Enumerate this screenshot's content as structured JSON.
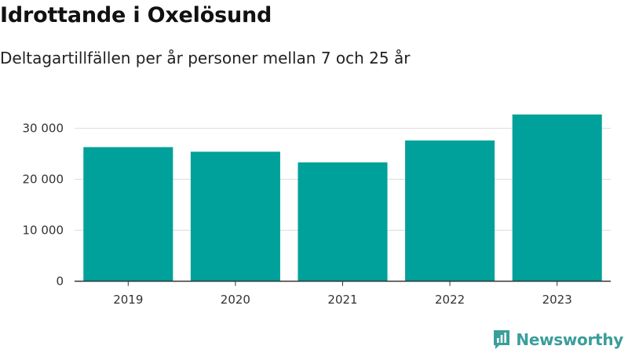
{
  "header": {
    "title": "Idrottande i Oxelösund",
    "subtitle": "Deltagartillfällen per år personer mellan 7 och 25 år"
  },
  "brand": {
    "name": "Newsworthy",
    "icon": "newsworthy-logo-icon",
    "color": "#3a9e9a"
  },
  "chart_data": {
    "type": "bar",
    "categories": [
      "2019",
      "2020",
      "2021",
      "2022",
      "2023"
    ],
    "values": [
      26300,
      25400,
      23300,
      27600,
      32700
    ],
    "ylim": [
      0,
      35000
    ],
    "yticks": [
      0,
      10000,
      20000,
      30000
    ],
    "ytick_labels": [
      "0",
      "10 000",
      "20 000",
      "30 000"
    ],
    "xlabel": "",
    "ylabel": "",
    "grid": true,
    "bar_color": "#00a19a",
    "gridline_color": "#dddddd",
    "axis_color": "#333333"
  }
}
